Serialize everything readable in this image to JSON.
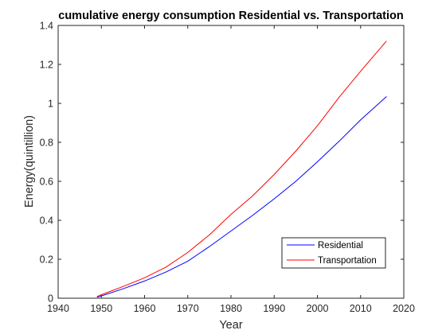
{
  "chart_data": {
    "type": "line",
    "title": "cumulative energy consumption Residential vs. Transportation",
    "xlabel": "Year",
    "ylabel": "Energy(quintillion)",
    "xlim": [
      1940,
      2020
    ],
    "ylim": [
      0,
      1.4
    ],
    "xticks": [
      1940,
      1950,
      1960,
      1970,
      1980,
      1990,
      2000,
      2010,
      2020
    ],
    "yticks": [
      0,
      0.2,
      0.4,
      0.6,
      0.8,
      1,
      1.2,
      1.4
    ],
    "xtick_labels": [
      "1940",
      "1950",
      "1960",
      "1970",
      "1980",
      "1990",
      "2000",
      "2010",
      "2020"
    ],
    "ytick_labels": [
      "0",
      "0.2",
      "0.4",
      "0.6",
      "0.8",
      "1",
      "1.2",
      "1.4"
    ],
    "grid": false,
    "legend_position": "bottom-right",
    "series": [
      {
        "name": "Residential",
        "color": "#0000ff",
        "x": [
          1949,
          1950,
          1955,
          1960,
          1965,
          1970,
          1975,
          1980,
          1985,
          1990,
          1995,
          2000,
          2005,
          2010,
          2016
        ],
        "y": [
          0.005,
          0.012,
          0.048,
          0.088,
          0.135,
          0.19,
          0.265,
          0.345,
          0.425,
          0.51,
          0.6,
          0.7,
          0.805,
          0.915,
          1.035
        ]
      },
      {
        "name": "Transportation",
        "color": "#ff0000",
        "x": [
          1949,
          1950,
          1955,
          1960,
          1965,
          1970,
          1975,
          1980,
          1985,
          1990,
          1995,
          2000,
          2005,
          2010,
          2016
        ],
        "y": [
          0.008,
          0.018,
          0.06,
          0.105,
          0.16,
          0.235,
          0.325,
          0.43,
          0.525,
          0.635,
          0.755,
          0.885,
          1.03,
          1.165,
          1.32
        ]
      }
    ]
  }
}
